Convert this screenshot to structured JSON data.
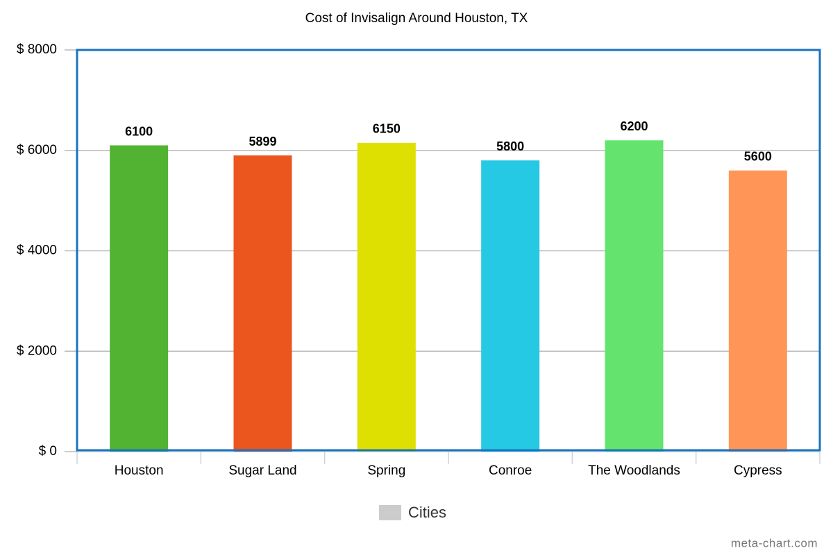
{
  "chart_data": {
    "type": "bar",
    "title": "Cost of Invisalign Around Houston, TX",
    "categories": [
      "Houston",
      "Sugar Land",
      "Spring",
      "Conroe",
      "The Woodlands",
      "Cypress"
    ],
    "series": [
      {
        "name": "Cities",
        "color": "#cccccc",
        "values": [
          6100,
          5899,
          6150,
          5800,
          6200,
          5600
        ],
        "bar_colors": [
          "#52b332",
          "#eb561e",
          "#dde000",
          "#26c9e3",
          "#64e46f",
          "#ff9657"
        ]
      }
    ],
    "ylim": [
      0,
      8000
    ],
    "yticks": [
      {
        "value": 0,
        "label": "$ 0"
      },
      {
        "value": 2000,
        "label": "$ 2000"
      },
      {
        "value": 4000,
        "label": "$ 4000"
      },
      {
        "value": 6000,
        "label": "$ 6000"
      },
      {
        "value": 8000,
        "label": "$ 8000"
      }
    ],
    "grid": true,
    "legend": "bottom",
    "watermark": "meta-chart.com"
  }
}
